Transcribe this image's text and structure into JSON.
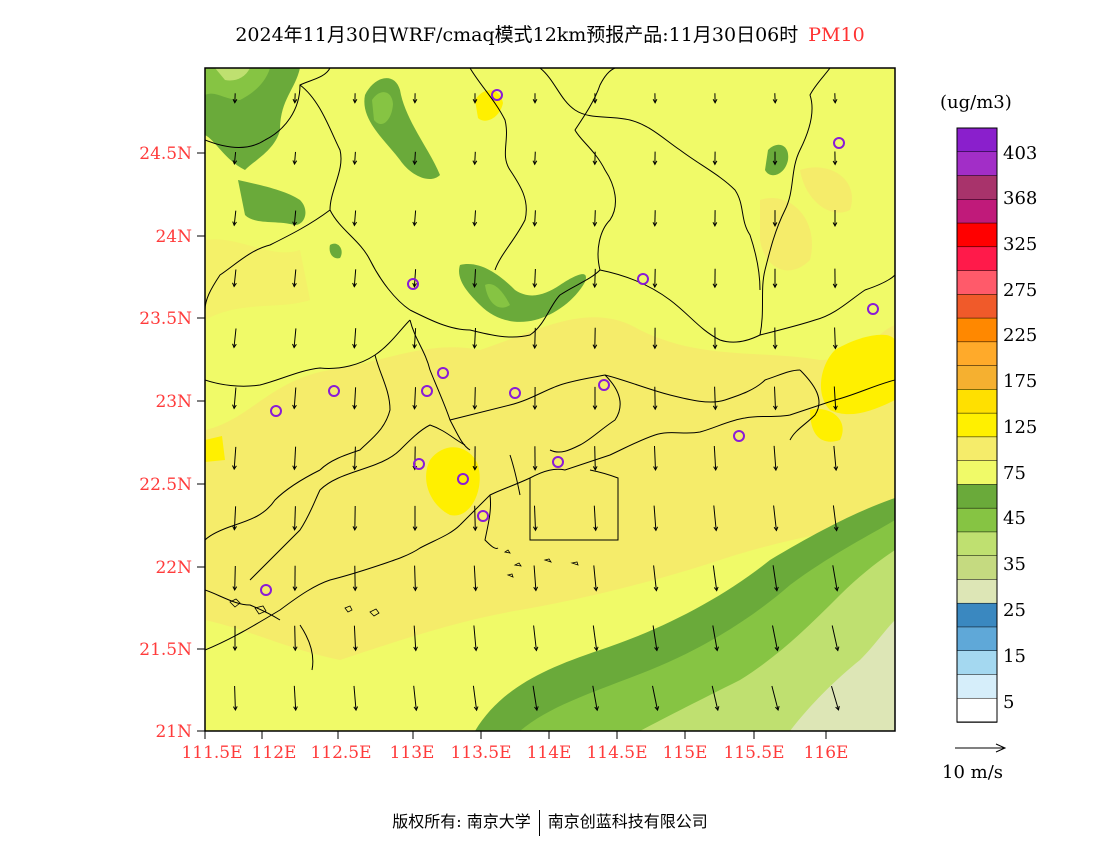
{
  "header": {
    "title": "2024年11月30日WRF/cmaq模式12km预报产品:11月30日06时",
    "pollutant": "PM10"
  },
  "map": {
    "lat_labels": [
      "24.5N",
      "24N",
      "23.5N",
      "23N",
      "22.5N",
      "22N",
      "21.5N",
      "21N"
    ],
    "lon_labels": [
      "111.5E",
      "112E",
      "112.5E",
      "113E",
      "113.5E",
      "114E",
      "114.5E",
      "115E",
      "115.5E",
      "116E"
    ],
    "station_marker_color": "#8a1bd6",
    "wind_vector_color": "#000000"
  },
  "colorbar": {
    "unit": "(ug/m3)",
    "labels": [
      "403",
      "368",
      "325",
      "275",
      "225",
      "175",
      "125",
      "75",
      "45",
      "35",
      "25",
      "15",
      "5"
    ],
    "colors_top_to_bottom": [
      "#8a1fcc",
      "#a22ec7",
      "#a8336b",
      "#c01a7a",
      "#ff0000",
      "#ff1a4a",
      "#ff5a6a",
      "#f05a2a",
      "#ff8800",
      "#ffaa2a",
      "#f5b030",
      "#ffe000",
      "#fff000",
      "#f5ec6a",
      "#f0fa68",
      "#6aaa3a",
      "#86c443",
      "#bfe070",
      "#c5da80",
      "#dde6b6",
      "#3a88c0",
      "#5fa8d8",
      "#a4d8f0",
      "#d6eefa",
      "#ffffff"
    ]
  },
  "wind_legend": {
    "label": "10 m/s"
  },
  "footer": {
    "copyright": "版权所有: 南京大学",
    "company": "南京创蓝科技有限公司"
  }
}
